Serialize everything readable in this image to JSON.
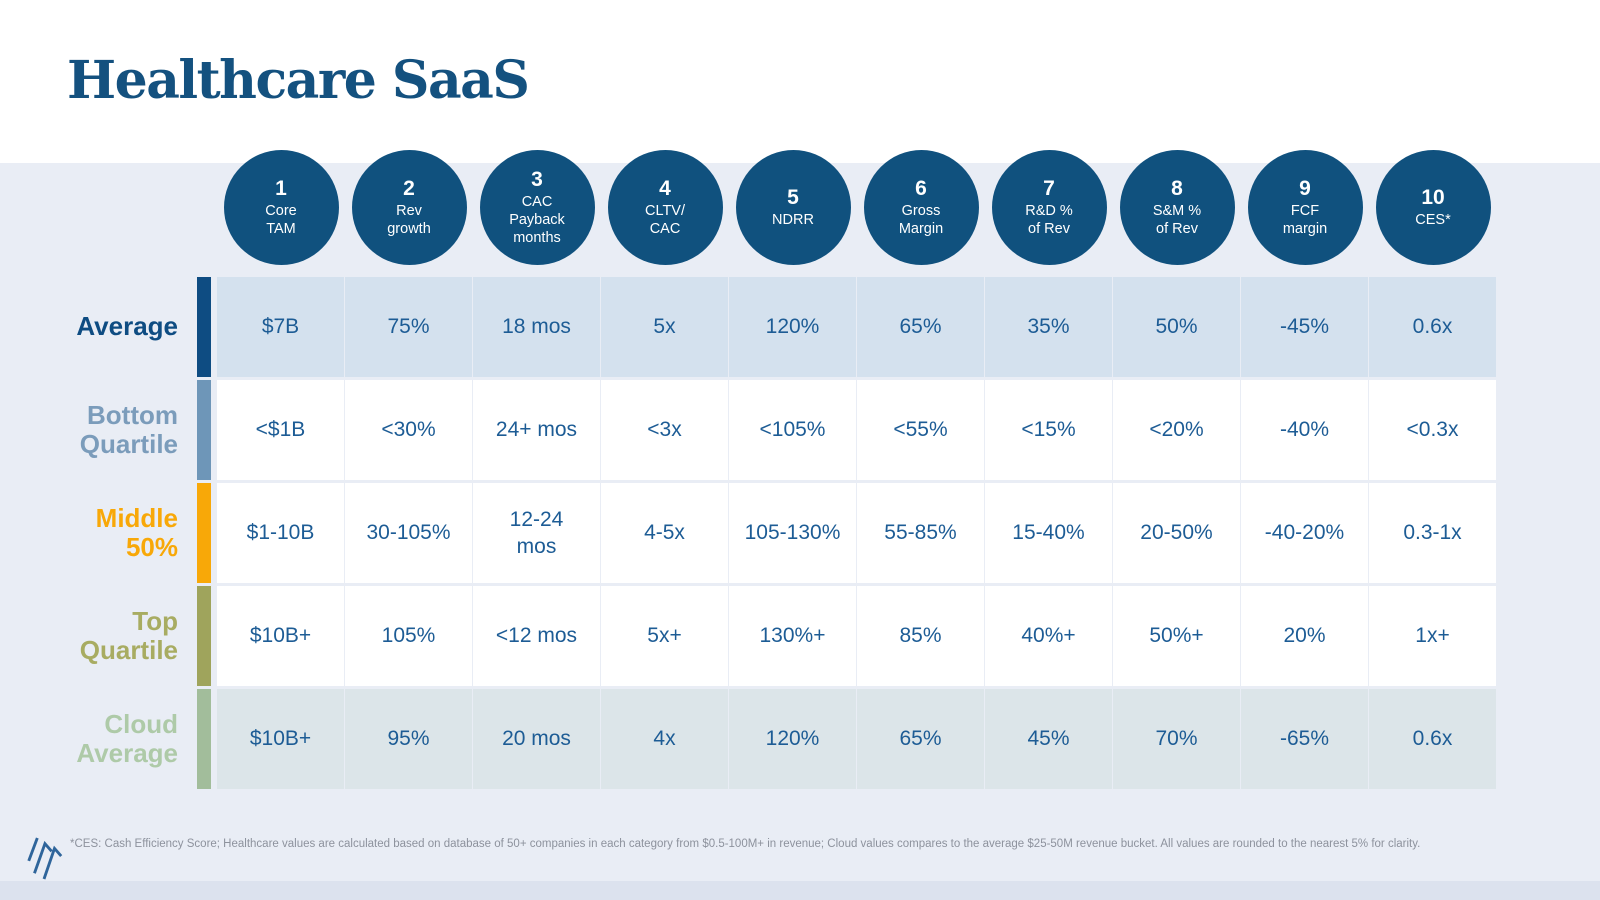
{
  "slide": {
    "title": "Healthcare SaaS"
  },
  "colors": {
    "title_blue": "#14517f",
    "circle_blue": "#10517e",
    "cell_text_blue": "#1d5c95",
    "band_bg": "#e9edf5",
    "average_row_bg": "#d4e1ee",
    "cloud_row_bg": "#dce5e9",
    "accent_average": "#0e4c82",
    "accent_bottom_quartile": "#6e96b8",
    "accent_middle_50": "#f8a808",
    "accent_top_quartile": "#9fa45c",
    "accent_cloud_average": "#a2bd9b"
  },
  "columns": [
    {
      "num": "1",
      "label_lines": [
        "Core",
        "TAM"
      ]
    },
    {
      "num": "2",
      "label_lines": [
        "Rev",
        "growth"
      ]
    },
    {
      "num": "3",
      "label_lines": [
        "CAC",
        "Payback",
        "months"
      ]
    },
    {
      "num": "4",
      "label_lines": [
        "CLTV/",
        "CAC"
      ]
    },
    {
      "num": "5",
      "label_lines": [
        "NDRR"
      ]
    },
    {
      "num": "6",
      "label_lines": [
        "Gross",
        "Margin"
      ]
    },
    {
      "num": "7",
      "label_lines": [
        "R&D %",
        "of Rev"
      ]
    },
    {
      "num": "8",
      "label_lines": [
        "S&M %",
        "of Rev"
      ]
    },
    {
      "num": "9",
      "label_lines": [
        "FCF",
        "margin"
      ]
    },
    {
      "num": "10",
      "label_lines": [
        "CES*"
      ]
    }
  ],
  "rows": [
    {
      "id": "average",
      "label_lines": [
        "Average"
      ],
      "label_color": "#0e4c82",
      "accent": "#0e4c82",
      "bg": "#d4e1ee",
      "values": [
        "$7B",
        "75%",
        "18 mos",
        "5x",
        "120%",
        "65%",
        "35%",
        "50%",
        "-45%",
        "0.6x"
      ]
    },
    {
      "id": "bottom-quartile",
      "label_lines": [
        "Bottom",
        "Quartile"
      ],
      "label_color": "#7b9cbb",
      "accent": "#6e96b8",
      "bg": "#ffffff",
      "values": [
        "<$1B",
        "<30%",
        "24+ mos",
        "<3x",
        "<105%",
        "<55%",
        "<15%",
        "<20%",
        "-40%",
        "<0.3x"
      ]
    },
    {
      "id": "middle-50",
      "label_lines": [
        "Middle",
        "50%"
      ],
      "label_color": "#f8a808",
      "accent": "#f8a808",
      "bg": "#ffffff",
      "values": [
        "$1-10B",
        "30-105%",
        "12-24\nmos",
        "4-5x",
        "105-130%",
        "55-85%",
        "15-40%",
        "20-50%",
        "-40-20%",
        "0.3-1x"
      ]
    },
    {
      "id": "top-quartile",
      "label_lines": [
        "Top",
        "Quartile"
      ],
      "label_color": "#a8ac62",
      "accent": "#9fa45c",
      "bg": "#ffffff",
      "values": [
        "$10B+",
        "105%",
        "<12 mos",
        "5x+",
        "130%+",
        "85%",
        "40%+",
        "50%+",
        "20%",
        "1x+"
      ]
    },
    {
      "id": "cloud-average",
      "label_lines": [
        "Cloud",
        "Average"
      ],
      "label_color": "#aecaa8",
      "accent": "#a2bd9b",
      "bg": "#dce5e9",
      "values": [
        "$10B+",
        "95%",
        "20 mos",
        "4x",
        "120%",
        "65%",
        "45%",
        "70%",
        "-65%",
        "0.6x"
      ]
    }
  ],
  "footnote": "*CES: Cash Efficiency Score; Healthcare values are calculated based on database of 50+ companies in each category from $0.5-100M+ in revenue; Cloud values compares to the average $25-50M revenue bucket. All values are rounded to the nearest 5% for clarity.",
  "chart_data": {
    "type": "table",
    "title": "Healthcare SaaS",
    "columns": [
      "Core TAM",
      "Rev growth",
      "CAC Payback months",
      "CLTV/CAC",
      "NDRR",
      "Gross Margin",
      "R&D % of Rev",
      "S&M % of Rev",
      "FCF margin",
      "CES*"
    ],
    "rows": [
      {
        "name": "Average",
        "values": [
          "$7B",
          "75%",
          "18 mos",
          "5x",
          "120%",
          "65%",
          "35%",
          "50%",
          "-45%",
          "0.6x"
        ]
      },
      {
        "name": "Bottom Quartile",
        "values": [
          "<$1B",
          "<30%",
          "24+ mos",
          "<3x",
          "<105%",
          "<55%",
          "<15%",
          "<20%",
          "-40%",
          "<0.3x"
        ]
      },
      {
        "name": "Middle 50%",
        "values": [
          "$1-10B",
          "30-105%",
          "12-24 mos",
          "4-5x",
          "105-130%",
          "55-85%",
          "15-40%",
          "20-50%",
          "-40-20%",
          "0.3-1x"
        ]
      },
      {
        "name": "Top Quartile",
        "values": [
          "$10B+",
          "105%",
          "<12 mos",
          "5x+",
          "130%+",
          "85%",
          "40%+",
          "50%+",
          "20%",
          "1x+"
        ]
      },
      {
        "name": "Cloud Average",
        "values": [
          "$10B+",
          "95%",
          "20 mos",
          "4x",
          "120%",
          "65%",
          "45%",
          "70%",
          "-65%",
          "0.6x"
        ]
      }
    ]
  }
}
